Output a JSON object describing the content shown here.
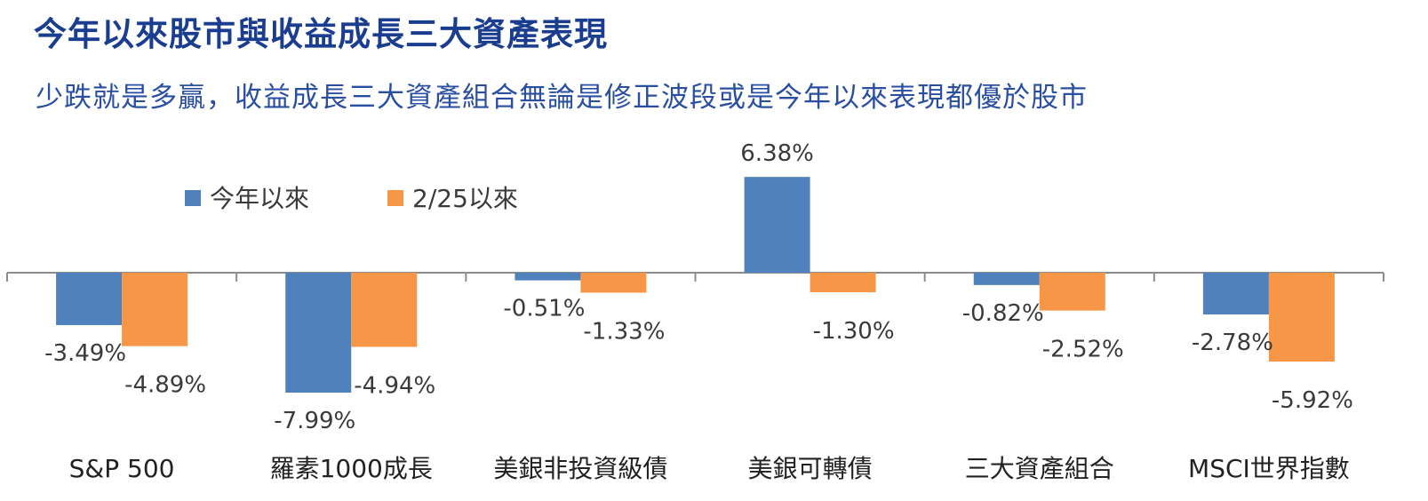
{
  "title": "今年以來股市與收益成長三大資產表現",
  "subtitle": "少跌就是多贏，收益成長三大資產組合無論是修正波段或是今年以來表現都優於股市",
  "colors": {
    "series1": "#4f81bd",
    "series2": "#f79646",
    "axis": "#8c8c8c",
    "text": "#3a3a3a"
  },
  "chart_data": {
    "type": "bar",
    "categories": [
      "S&P 500",
      "羅素1000成長",
      "美銀非投資級債",
      "美銀可轉債",
      "三大資產組合",
      "MSCI世界指數"
    ],
    "series": [
      {
        "name": "今年以來",
        "values": [
          -3.49,
          -7.99,
          -0.51,
          6.38,
          -0.82,
          -2.78
        ],
        "labels": [
          "-3.49%",
          "-7.99%",
          "-0.51%",
          "6.38%",
          "-0.82%",
          "-2.78%"
        ]
      },
      {
        "name": "2/25以來",
        "values": [
          -4.89,
          -4.94,
          -1.33,
          -1.3,
          -2.52,
          -5.92
        ],
        "labels": [
          "-4.89%",
          "-4.94%",
          "-1.33%",
          "-1.30%",
          "-2.52%",
          "-5.92%"
        ]
      }
    ],
    "legend_position": "top-left",
    "grid": false
  }
}
